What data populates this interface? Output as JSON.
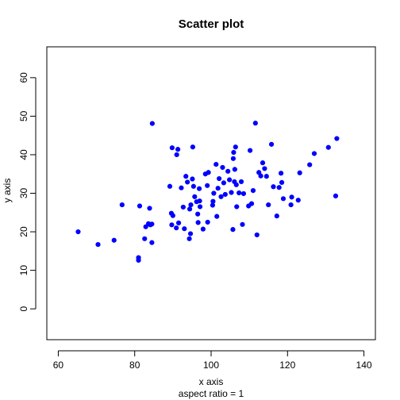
{
  "chart_data": {
    "type": "scatter",
    "title": "Scatter plot",
    "xlabel": "x axis",
    "ylabel": "y axis",
    "subtitle": "aspect ratio = 1",
    "xlim": [
      57,
      143
    ],
    "ylim": [
      -8,
      68
    ],
    "xticks": [
      60,
      80,
      100,
      120,
      140
    ],
    "yticks": [
      0,
      10,
      20,
      30,
      40,
      50,
      60
    ],
    "grid": false,
    "point_color": "#0000ff",
    "x": [
      65.2,
      70.4,
      74.6,
      76.7,
      81.0,
      81.0,
      81.3,
      82.6,
      82.9,
      83.6,
      83.9,
      84.1,
      84.5,
      84.5,
      84.6,
      89.2,
      89.6,
      89.8,
      89.7,
      90.0,
      90.9,
      91.0,
      91.3,
      91.5,
      92.2,
      92.7,
      93.0,
      93.4,
      93.8,
      94.3,
      94.4,
      94.6,
      94.7,
      95.1,
      95.2,
      95.4,
      95.7,
      96.2,
      96.5,
      96.6,
      96.9,
      97.0,
      97.1,
      97.9,
      98.5,
      99.0,
      99.1,
      99.3,
      100.4,
      100.5,
      100.7,
      101.3,
      101.5,
      101.8,
      102.1,
      102.6,
      103.0,
      103.3,
      103.7,
      104.4,
      104.8,
      105.3,
      105.7,
      105.8,
      105.9,
      106.1,
      106.2,
      106.4,
      106.6,
      106.7,
      107.3,
      107.9,
      108.2,
      108.5,
      109.8,
      110.2,
      110.6,
      111.0,
      111.6,
      112.0,
      112.5,
      113.0,
      113.5,
      114.0,
      114.5,
      115.0,
      115.8,
      116.3,
      117.2,
      117.8,
      118.3,
      118.5,
      118.9,
      120.9,
      121.1,
      122.8,
      123.2,
      125.8,
      127.0,
      130.7,
      132.6,
      132.9
    ],
    "y": [
      20.0,
      16.7,
      17.8,
      27.0,
      12.6,
      13.3,
      26.7,
      18.2,
      21.3,
      22.1,
      26.1,
      21.8,
      17.2,
      22.0,
      48.1,
      31.8,
      24.8,
      41.8,
      21.8,
      24.2,
      21.0,
      40.0,
      41.4,
      22.3,
      31.4,
      26.4,
      20.8,
      34.4,
      32.9,
      18.2,
      25.9,
      19.5,
      27.0,
      33.7,
      42.0,
      31.8,
      29.1,
      27.8,
      24.6,
      22.4,
      31.2,
      28.0,
      26.5,
      20.7,
      35.0,
      32.0,
      22.5,
      35.4,
      26.9,
      27.9,
      30.0,
      37.5,
      24.0,
      31.3,
      33.8,
      29.1,
      36.7,
      32.7,
      29.7,
      35.7,
      33.5,
      30.2,
      20.6,
      39.0,
      40.6,
      33.0,
      36.2,
      42.0,
      32.2,
      26.5,
      30.1,
      33.0,
      21.9,
      29.9,
      26.7,
      41.1,
      27.3,
      30.7,
      48.2,
      19.2,
      35.4,
      34.5,
      37.9,
      36.4,
      34.4,
      27.0,
      42.7,
      31.7,
      24.1,
      31.5,
      35.2,
      32.8,
      28.6,
      27.0,
      29.0,
      28.2,
      35.3,
      37.4,
      40.3,
      41.9,
      29.3,
      44.2
    ]
  }
}
